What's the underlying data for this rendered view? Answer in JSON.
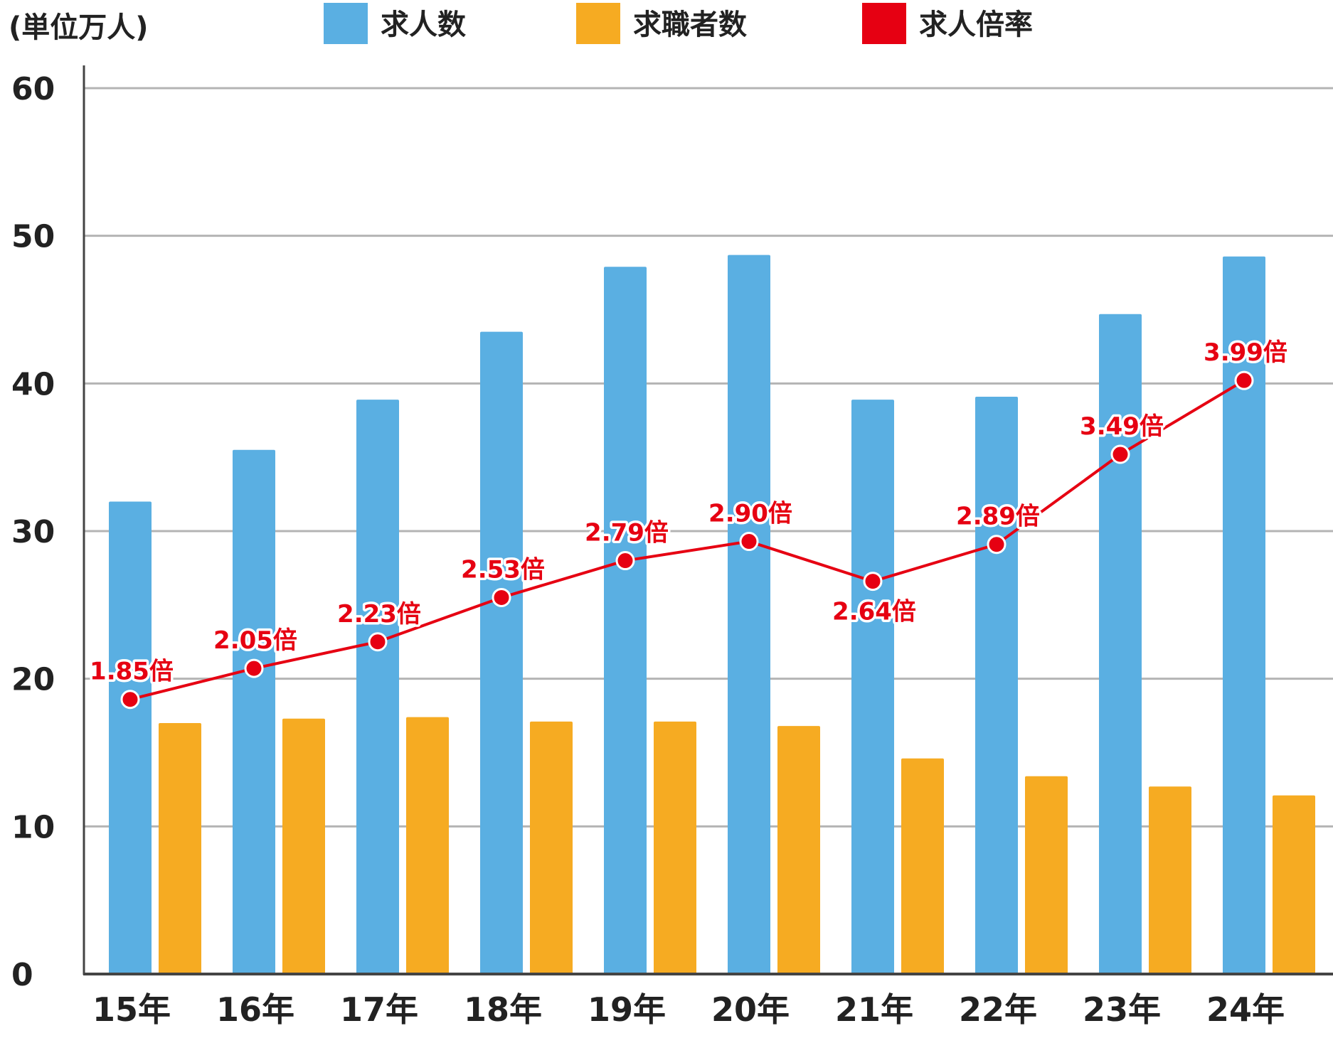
{
  "chart_data": {
    "type": "bar",
    "unit_label": "(単位万人)",
    "categories": [
      "15年",
      "16年",
      "17年",
      "18年",
      "19年",
      "20年",
      "21年",
      "22年",
      "23年",
      "24年"
    ],
    "ylim": [
      0,
      60
    ],
    "yticks": [
      "0",
      "10",
      "20",
      "30",
      "40",
      "50",
      "60"
    ],
    "grid": true,
    "legend_position": "top",
    "series": [
      {
        "name": "求人数",
        "color": "#5aafe2",
        "values": [
          32.0,
          35.5,
          38.9,
          43.5,
          47.9,
          48.7,
          38.9,
          39.1,
          44.7,
          48.6
        ]
      },
      {
        "name": "求職者数",
        "color": "#f6ab22",
        "values": [
          17.0,
          17.3,
          17.4,
          17.1,
          17.1,
          16.8,
          14.6,
          13.4,
          12.7,
          12.1
        ]
      }
    ],
    "line_series": {
      "name": "求人倍率",
      "color": "#e60012",
      "values": [
        1.85,
        2.05,
        2.23,
        2.53,
        2.79,
        2.9,
        2.64,
        2.89,
        3.49,
        3.99
      ],
      "plot_positions": [
        18.6,
        20.7,
        22.5,
        25.5,
        28.0,
        29.3,
        26.6,
        29.1,
        35.2,
        40.2
      ],
      "labels": [
        "1.85倍",
        "2.05倍",
        "2.23倍",
        "2.53倍",
        "2.79倍",
        "2.90倍",
        "2.64倍",
        "2.89倍",
        "3.49倍",
        "3.99倍"
      ],
      "label_placement": [
        "above",
        "above",
        "above",
        "above",
        "above",
        "above",
        "below",
        "above",
        "above",
        "above"
      ]
    }
  }
}
